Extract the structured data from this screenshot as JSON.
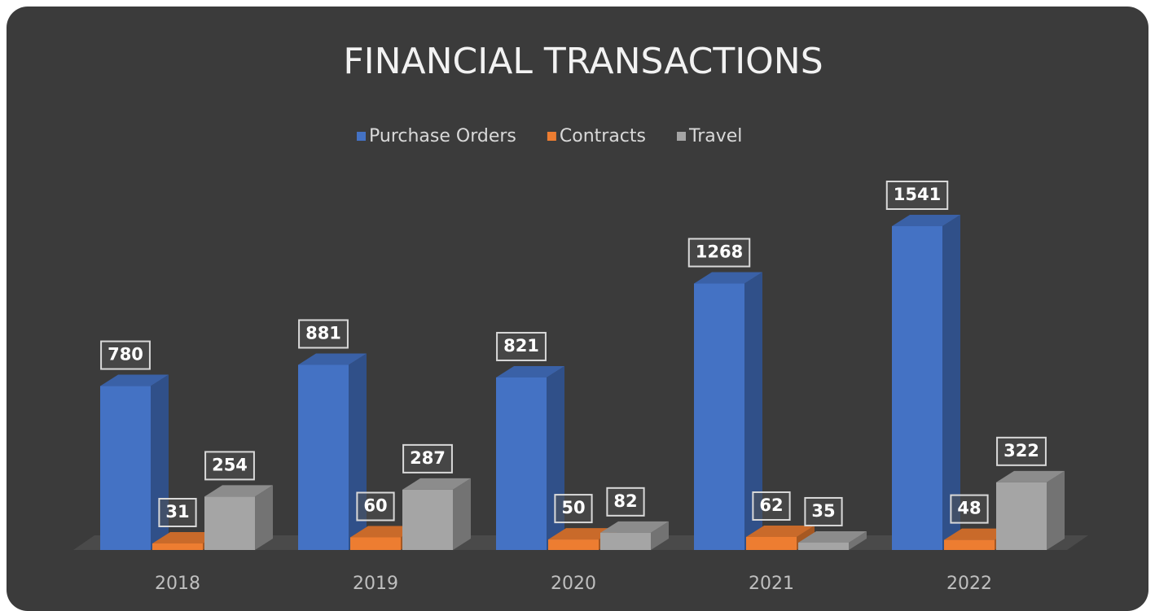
{
  "chart_data": {
    "type": "bar3d",
    "title": "FINANCIAL TRANSACTIONS",
    "categories": [
      "2018",
      "2019",
      "2020",
      "2021",
      "2022"
    ],
    "series": [
      {
        "name": "Purchase Orders",
        "color": "#4472c4",
        "values": [
          780,
          881,
          821,
          1268,
          1541
        ]
      },
      {
        "name": "Contracts",
        "color": "#ed7d31",
        "values": [
          31,
          60,
          50,
          62,
          48
        ]
      },
      {
        "name": "Travel",
        "color": "#a5a5a5",
        "values": [
          254,
          287,
          82,
          35,
          322
        ]
      }
    ],
    "legend": "top"
  }
}
